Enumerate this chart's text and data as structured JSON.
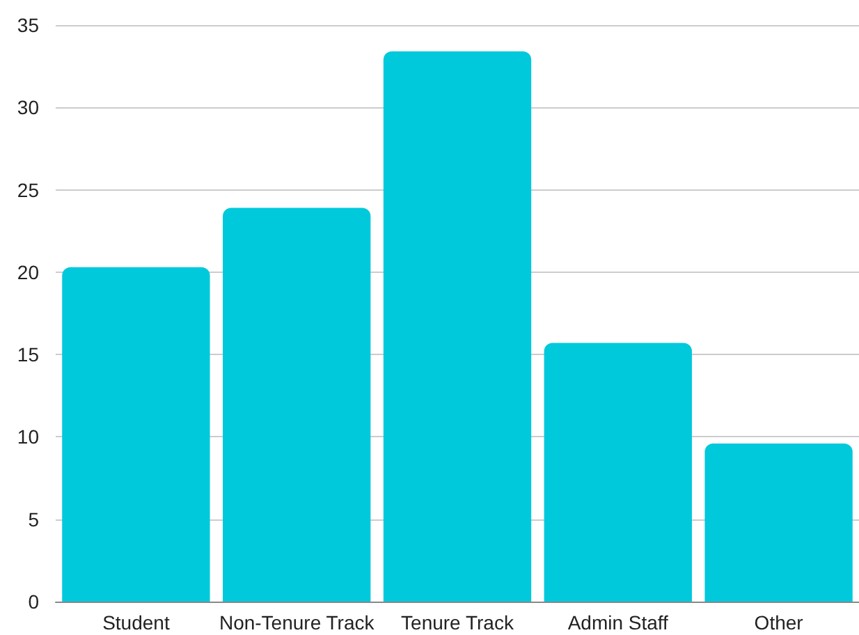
{
  "chart_data": {
    "type": "bar",
    "categories": [
      "Student",
      "Non-Tenure Track",
      "Tenure Track",
      "Admin Staff",
      "Other"
    ],
    "values": [
      20.3,
      23.9,
      33.4,
      15.7,
      9.6
    ],
    "color": "#00c9dc",
    "ylim": [
      0,
      35
    ],
    "yticks": [
      0,
      5,
      10,
      15,
      20,
      25,
      30,
      35
    ],
    "grid": "y"
  }
}
